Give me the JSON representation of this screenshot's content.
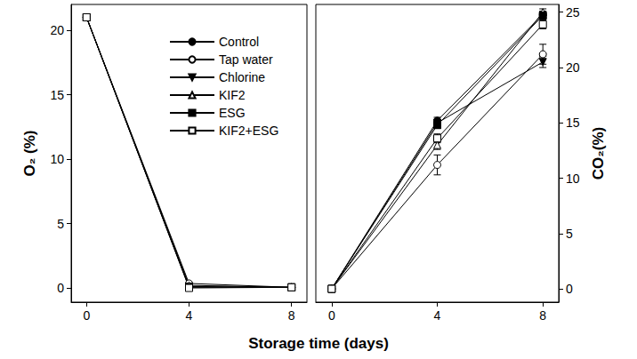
{
  "chart_data": [
    {
      "type": "line",
      "xlabel": "Storage time (days)",
      "ylabel": "O₂ (%)",
      "xlim": [
        -0.6,
        8.6
      ],
      "xticks": [
        0,
        4,
        8
      ],
      "ylim": [
        -1.1,
        22
      ],
      "yticks": [
        0,
        5,
        10,
        15,
        20
      ],
      "legend": "upper right",
      "series": [
        {
          "name": "Control",
          "color": "#000000",
          "marker": "circle",
          "x": [
            0,
            4,
            8
          ],
          "values": [
            21,
            0.1,
            0.05
          ]
        },
        {
          "name": "Tap water",
          "color": "#000000",
          "marker": "circle_open",
          "x": [
            0,
            4,
            8
          ],
          "values": [
            21,
            0.35,
            0.05
          ]
        },
        {
          "name": "Chlorine",
          "color": "#000000",
          "marker": "triangle_down",
          "x": [
            0,
            4,
            8
          ],
          "values": [
            21,
            0.1,
            0.05
          ]
        },
        {
          "name": "KIF2",
          "color": "#000000",
          "marker": "triangle_open",
          "x": [
            0,
            4,
            8
          ],
          "values": [
            21,
            0.2,
            0.05
          ]
        },
        {
          "name": "ESG",
          "color": "#000000",
          "marker": "square",
          "x": [
            0,
            4,
            8
          ],
          "values": [
            21,
            0.05,
            0.05
          ]
        },
        {
          "name": "KIF2+ESG",
          "color": "#000000",
          "marker": "square_open",
          "x": [
            0,
            4,
            8
          ],
          "values": [
            21,
            0.0,
            0.05
          ]
        }
      ]
    },
    {
      "type": "line",
      "ylabel": "CO₂(%)",
      "xlim": [
        -0.6,
        8.6
      ],
      "xticks": [
        0,
        4,
        8
      ],
      "ylim": [
        -1.2,
        25.7
      ],
      "yticks": [
        0,
        5,
        10,
        15,
        20,
        25
      ],
      "series": [
        {
          "name": "Control",
          "color": "#000000",
          "marker": "circle",
          "x": [
            0,
            4,
            8
          ],
          "values": [
            0,
            15.2,
            24.8
          ],
          "errors": [
            0,
            0.3,
            0.3
          ]
        },
        {
          "name": "Tap water",
          "color": "#000000",
          "marker": "circle_open",
          "x": [
            0,
            4,
            8
          ],
          "values": [
            0,
            11.2,
            21.2
          ],
          "errors": [
            0,
            0.9,
            0.9
          ]
        },
        {
          "name": "Chlorine",
          "color": "#000000",
          "marker": "triangle_down",
          "x": [
            0,
            4,
            8
          ],
          "values": [
            0,
            15.0,
            20.5
          ],
          "errors": [
            0,
            0.3,
            0.5
          ]
        },
        {
          "name": "KIF2",
          "color": "#000000",
          "marker": "triangle_open",
          "x": [
            0,
            4,
            8
          ],
          "values": [
            0,
            13.0,
            25.0
          ],
          "errors": [
            0,
            0.4,
            0.3
          ]
        },
        {
          "name": "ESG",
          "color": "#000000",
          "marker": "square",
          "x": [
            0,
            4,
            8
          ],
          "values": [
            0,
            14.8,
            24.7
          ],
          "errors": [
            0,
            0.3,
            0.3
          ]
        },
        {
          "name": "KIF2+ESG",
          "color": "#000000",
          "marker": "square_open",
          "x": [
            0,
            4,
            8
          ],
          "values": [
            0,
            13.6,
            23.9
          ],
          "errors": [
            0,
            0.4,
            0.4
          ]
        }
      ]
    }
  ]
}
